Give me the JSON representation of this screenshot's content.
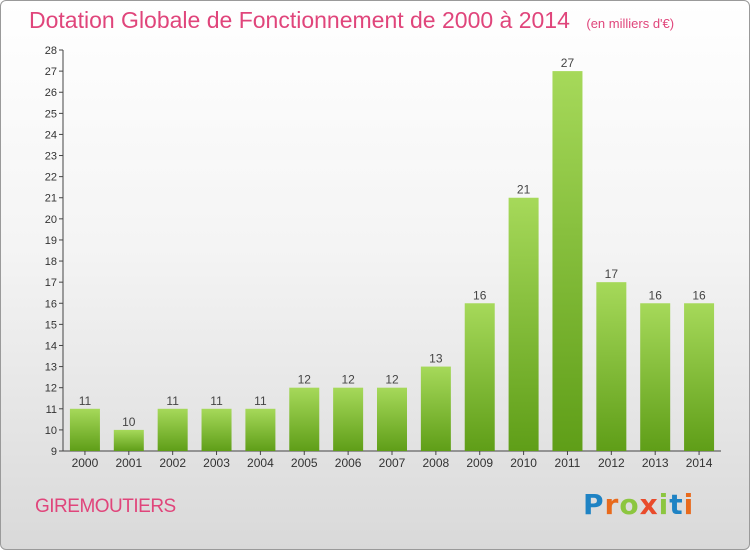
{
  "header": {
    "title": "Dotation Globale de Fonctionnement de 2000 à 2014",
    "subtitle": "(en milliers d'€)"
  },
  "footer": {
    "commune": "GIREMOUTIERS",
    "logo_letters": [
      "P",
      "r",
      "o",
      "x",
      "i",
      "t",
      "i"
    ],
    "logo_colors": [
      "#1f83c4",
      "#e86a1c",
      "#8cc63f",
      "#e94b2b",
      "#8cc63f",
      "#1f83c4",
      "#e86a1c"
    ]
  },
  "colors": {
    "bar_light": "#a6d95a",
    "bar_dark": "#5f9e18",
    "axis": "#444444",
    "grid": "#bdbdbd",
    "title": "#e0457b"
  },
  "chart_data": {
    "type": "bar",
    "categories": [
      "2000",
      "2001",
      "2002",
      "2003",
      "2004",
      "2005",
      "2006",
      "2007",
      "2008",
      "2009",
      "2010",
      "2011",
      "2012",
      "2013",
      "2014"
    ],
    "values": [
      11,
      10,
      11,
      11,
      11,
      12,
      12,
      12,
      13,
      16,
      21,
      27,
      17,
      16,
      16
    ],
    "title": "Dotation Globale de Fonctionnement de 2000 à 2014",
    "subtitle": "(en milliers d'€)",
    "xlabel": "",
    "ylabel": "",
    "ylim": [
      9,
      28
    ],
    "yticks": [
      9,
      10,
      11,
      12,
      13,
      14,
      15,
      16,
      17,
      18,
      19,
      20,
      21,
      22,
      23,
      24,
      25,
      26,
      27,
      28
    ],
    "grid": false,
    "data_labels": true
  }
}
